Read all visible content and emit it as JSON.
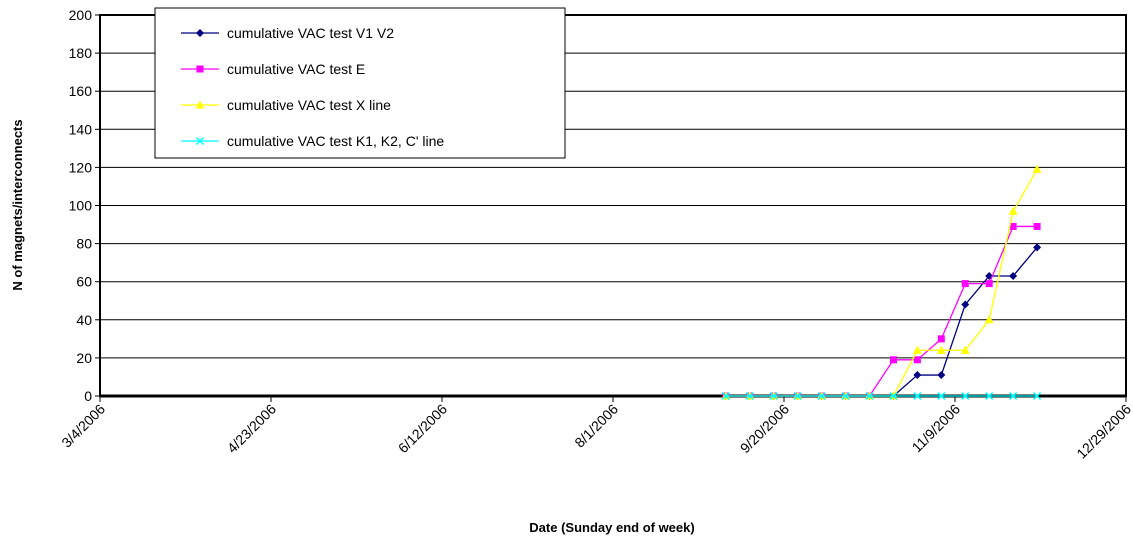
{
  "chart_data": {
    "type": "line",
    "xlabel": "Date (Sunday end of week)",
    "ylabel": "N of magnets/interconnects",
    "x": [
      "9/3/2006",
      "9/10/2006",
      "9/17/2006",
      "9/24/2006",
      "10/1/2006",
      "10/8/2006",
      "10/15/2006",
      "10/22/2006",
      "10/29/2006",
      "11/5/2006",
      "11/12/2006",
      "11/19/2006",
      "11/26/2006",
      "12/3/2006"
    ],
    "series": [
      {
        "name": "cumulative VAC test V1 V2",
        "color": "#000080",
        "marker": "diamond",
        "values": [
          0,
          0,
          0,
          0,
          0,
          0,
          0,
          0,
          11,
          11,
          48,
          63,
          63,
          78
        ]
      },
      {
        "name": "cumulative VAC test E",
        "color": "#ff00ff",
        "marker": "square",
        "values": [
          0,
          0,
          0,
          0,
          0,
          0,
          0,
          19,
          19,
          30,
          59,
          59,
          89,
          89
        ]
      },
      {
        "name": "cumulative VAC test X line",
        "color": "#ffff00",
        "marker": "triangle",
        "values": [
          0,
          0,
          0,
          0,
          0,
          0,
          0,
          0,
          24,
          24,
          24,
          40,
          97,
          119
        ]
      },
      {
        "name": "cumulative VAC test K1, K2, C' line",
        "color": "#00ffff",
        "marker": "x",
        "values": [
          0,
          0,
          0,
          0,
          0,
          0,
          0,
          0,
          0,
          0,
          0,
          0,
          0,
          0
        ]
      }
    ],
    "xlim": [
      "3/4/2006",
      "12/29/2006"
    ],
    "xticks": [
      "3/4/2006",
      "4/23/2006",
      "6/12/2006",
      "8/1/2006",
      "9/20/2006",
      "11/9/2006",
      "12/29/2006"
    ],
    "ylim": [
      0,
      200
    ],
    "yticks": [
      0,
      20,
      40,
      60,
      80,
      100,
      120,
      140,
      160,
      180,
      200
    ],
    "grid": true,
    "legend": "top-left"
  }
}
